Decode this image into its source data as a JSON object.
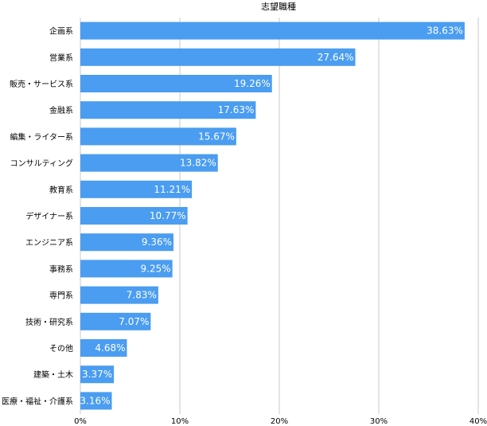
{
  "chart_data": {
    "type": "bar",
    "orientation": "horizontal",
    "title": "志望職種",
    "categories": [
      "企画系",
      "営業系",
      "販売・サービス系",
      "金融系",
      "編集・ライター系",
      "コンサルティング",
      "教育系",
      "デザイナー系",
      "エンジニア系",
      "事務系",
      "専門系",
      "技術・研究系",
      "その他",
      "建築・土木",
      "医療・福祉・介護系"
    ],
    "values": [
      38.63,
      27.64,
      19.26,
      17.63,
      15.67,
      13.82,
      11.21,
      10.77,
      9.36,
      9.25,
      7.83,
      7.07,
      4.68,
      3.37,
      3.16
    ],
    "value_labels": [
      "38.63%",
      "27.64%",
      "19.26%",
      "17.63%",
      "15.67%",
      "13.82%",
      "11.21%",
      "10.77%",
      "9.36%",
      "9.25%",
      "7.83%",
      "7.07%",
      "4.68%",
      "3.37%",
      "3.16%"
    ],
    "xlim": [
      0,
      40
    ],
    "xticks": [
      0,
      10,
      20,
      30,
      40
    ],
    "xtick_labels": [
      "0%",
      "10%",
      "20%",
      "30%",
      "40%"
    ],
    "xlabel": "",
    "ylabel": "",
    "grid": true,
    "legend": "none",
    "bar_color": "#4a9df0"
  }
}
